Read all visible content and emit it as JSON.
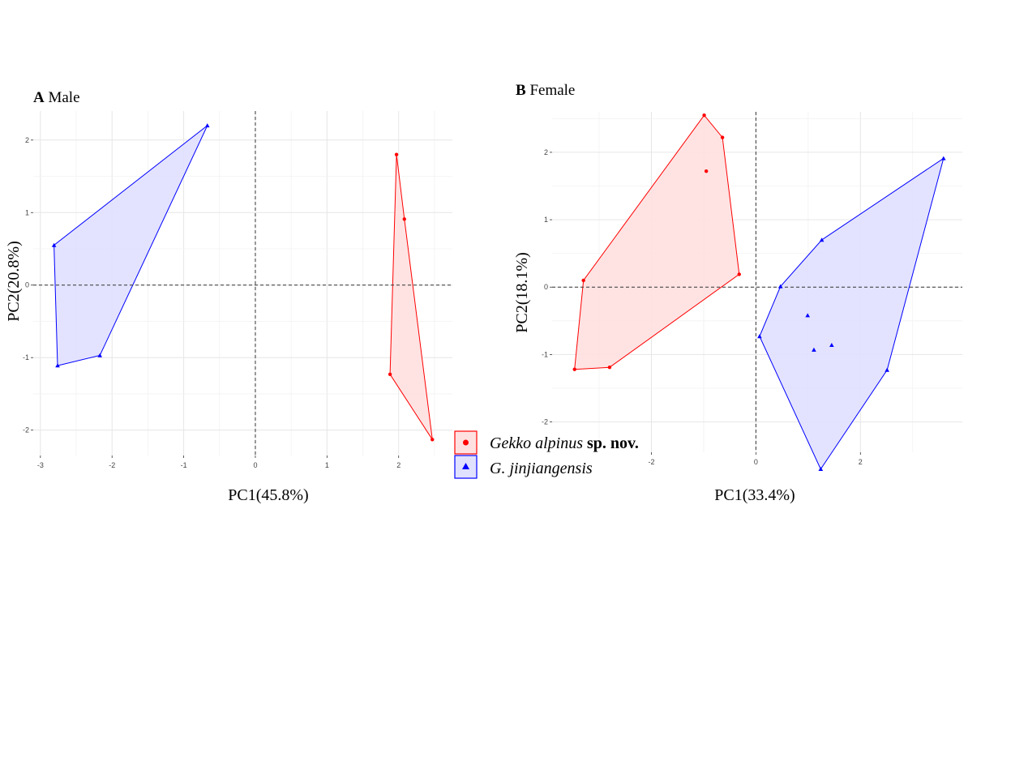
{
  "chart_data": [
    {
      "type": "scatter",
      "panel_letter": "A",
      "title": "Male",
      "xlabel": "PC1(45.8%)",
      "ylabel": "PC2(20.8%)",
      "xlim": [
        -3.1,
        2.75
      ],
      "ylim": [
        -2.35,
        2.4
      ],
      "xticks": [
        -3,
        -2,
        -1,
        0,
        1,
        2
      ],
      "yticks": [
        -2,
        -1,
        0,
        1,
        2
      ],
      "grid": true,
      "reference_lines": {
        "x": 0,
        "y": 0,
        "style": "dashed"
      },
      "series": [
        {
          "name": "Gekko alpinus sp. nov.",
          "marker": "circle",
          "color": "#ff0000",
          "fill": "#ffe0e0",
          "points": [
            [
              1.97,
              1.8
            ],
            [
              2.08,
              0.91
            ],
            [
              1.88,
              -1.23
            ],
            [
              2.47,
              -2.13
            ]
          ],
          "hull": [
            [
              1.97,
              1.8
            ],
            [
              2.08,
              0.91
            ],
            [
              2.47,
              -2.13
            ],
            [
              1.88,
              -1.23
            ]
          ]
        },
        {
          "name": "G. jinjiangensis",
          "marker": "triangle",
          "color": "#0000ff",
          "fill": "#e0e0ff",
          "points": [
            [
              -0.67,
              2.2
            ],
            [
              -2.81,
              0.55
            ],
            [
              -2.76,
              -1.11
            ],
            [
              -2.17,
              -0.97
            ]
          ],
          "hull": [
            [
              -0.67,
              2.2
            ],
            [
              -2.81,
              0.55
            ],
            [
              -2.76,
              -1.11
            ],
            [
              -2.17,
              -0.97
            ]
          ]
        }
      ]
    },
    {
      "type": "scatter",
      "panel_letter": "B",
      "title": "Female",
      "xlabel": "PC1(33.4%)",
      "ylabel": "PC2(18.1%)",
      "xlim": [
        -3.9,
        3.95
      ],
      "ylim": [
        -2.45,
        2.6
      ],
      "xticks": [
        -2,
        0,
        2
      ],
      "yticks": [
        -2,
        -1,
        0,
        1,
        2
      ],
      "grid": true,
      "reference_lines": {
        "x": 0,
        "y": 0,
        "style": "dashed"
      },
      "series": [
        {
          "name": "Gekko alpinus sp. nov.",
          "marker": "circle",
          "color": "#ff0000",
          "fill": "#ffe0e0",
          "points": [
            [
              -0.99,
              2.55
            ],
            [
              -0.64,
              2.22
            ],
            [
              -0.95,
              1.72
            ],
            [
              -0.32,
              0.19
            ],
            [
              -3.3,
              0.1
            ],
            [
              -3.47,
              -1.22
            ],
            [
              -2.8,
              -1.19
            ]
          ],
          "hull": [
            [
              -0.99,
              2.55
            ],
            [
              -0.64,
              2.22
            ],
            [
              -0.32,
              0.19
            ],
            [
              -2.8,
              -1.19
            ],
            [
              -3.47,
              -1.22
            ],
            [
              -3.3,
              0.1
            ]
          ]
        },
        {
          "name": "G. jinjiangensis",
          "marker": "triangle",
          "color": "#0000ff",
          "fill": "#e0e0ff",
          "points": [
            [
              3.59,
              1.91
            ],
            [
              1.26,
              0.7
            ],
            [
              0.47,
              0.01
            ],
            [
              0.07,
              -0.73
            ],
            [
              0.99,
              -0.42
            ],
            [
              1.45,
              -0.86
            ],
            [
              1.11,
              -0.93
            ],
            [
              2.51,
              -1.23
            ],
            [
              1.24,
              -2.7
            ]
          ],
          "hull": [
            [
              3.59,
              1.91
            ],
            [
              2.51,
              -1.23
            ],
            [
              1.24,
              -2.7
            ],
            [
              0.07,
              -0.73
            ],
            [
              0.47,
              0.01
            ],
            [
              1.26,
              0.7
            ]
          ]
        }
      ]
    }
  ],
  "legend": {
    "placement": "center",
    "entries": [
      {
        "marker": "circle",
        "color": "#ff0000",
        "label_italic": "Gekko alpinus",
        "label_bold": "sp. nov."
      },
      {
        "marker": "triangle",
        "color": "#0000ff",
        "label_italic": "G. jinjiangensis",
        "label_bold": ""
      }
    ]
  }
}
